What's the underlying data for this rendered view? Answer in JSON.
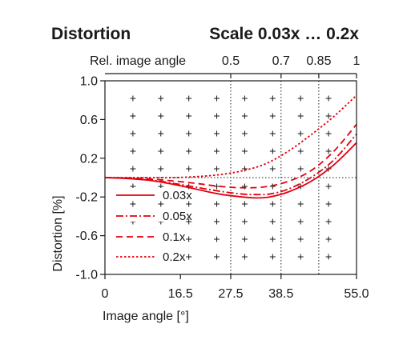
{
  "chart_data": {
    "type": "line",
    "title": "Distortion",
    "subtitle": "Scale 0.03x … 0.2x",
    "xlabel": "Image angle [°]",
    "ylabel": "Distortion [%]",
    "top_axis_label": "Rel. image angle",
    "xlim": [
      0,
      55.0
    ],
    "ylim": [
      -1.0,
      1.0
    ],
    "x_ticks": [
      {
        "value": 0,
        "label": "0"
      },
      {
        "value": 16.5,
        "label": "16.5"
      },
      {
        "value": 27.5,
        "label": "27.5"
      },
      {
        "value": 38.5,
        "label": "38.5"
      },
      {
        "value": 55.0,
        "label": "55.0"
      }
    ],
    "y_ticks": [
      {
        "value": 1.0,
        "label": "1.0"
      },
      {
        "value": 0.6,
        "label": "0.6"
      },
      {
        "value": 0.2,
        "label": "0.2"
      },
      {
        "value": -0.2,
        "label": "-0.2"
      },
      {
        "value": -0.6,
        "label": "-0.6"
      },
      {
        "value": -1.0,
        "label": "-1.0"
      }
    ],
    "top_ticks": [
      {
        "value": 27.5,
        "label": "0.5"
      },
      {
        "value": 38.5,
        "label": "0.7"
      },
      {
        "value": 46.75,
        "label": "0.85"
      },
      {
        "value": 55.0,
        "label": "1"
      }
    ],
    "reference_lines": {
      "vertical": [
        27.5,
        38.5,
        46.75
      ],
      "horizontal": [
        0
      ]
    },
    "grid": "cross-markers",
    "legend_position": "lower-left",
    "series": [
      {
        "name": "0.03x",
        "style": "solid",
        "x": [
          0,
          5,
          10,
          15,
          20,
          25,
          30,
          33,
          36,
          40,
          45,
          50,
          55
        ],
        "y": [
          0,
          -0.01,
          -0.03,
          -0.07,
          -0.12,
          -0.17,
          -0.2,
          -0.21,
          -0.2,
          -0.15,
          -0.04,
          0.13,
          0.36
        ]
      },
      {
        "name": "0.05x",
        "style": "dashdot",
        "x": [
          0,
          5,
          10,
          15,
          20,
          25,
          30,
          33,
          36,
          40,
          45,
          50,
          55
        ],
        "y": [
          0,
          -0.008,
          -0.025,
          -0.06,
          -0.1,
          -0.14,
          -0.17,
          -0.175,
          -0.17,
          -0.12,
          0.0,
          0.18,
          0.45
        ]
      },
      {
        "name": "0.1x",
        "style": "dashed",
        "x": [
          0,
          5,
          10,
          15,
          20,
          25,
          30,
          35,
          40,
          45,
          50,
          55
        ],
        "y": [
          0,
          -0.004,
          -0.015,
          -0.035,
          -0.06,
          -0.09,
          -0.105,
          -0.095,
          -0.04,
          0.07,
          0.27,
          0.55
        ]
      },
      {
        "name": "0.2x",
        "style": "dotted",
        "x": [
          0,
          5,
          10,
          15,
          20,
          25,
          30,
          35,
          40,
          45,
          50,
          55
        ],
        "y": [
          0,
          0.0,
          0.0,
          0.0,
          0.01,
          0.03,
          0.07,
          0.14,
          0.27,
          0.44,
          0.63,
          0.85
        ]
      }
    ],
    "colors": {
      "series": "#e3000f",
      "frame": "#1a1a1a",
      "text": "#1a1a1a"
    }
  }
}
